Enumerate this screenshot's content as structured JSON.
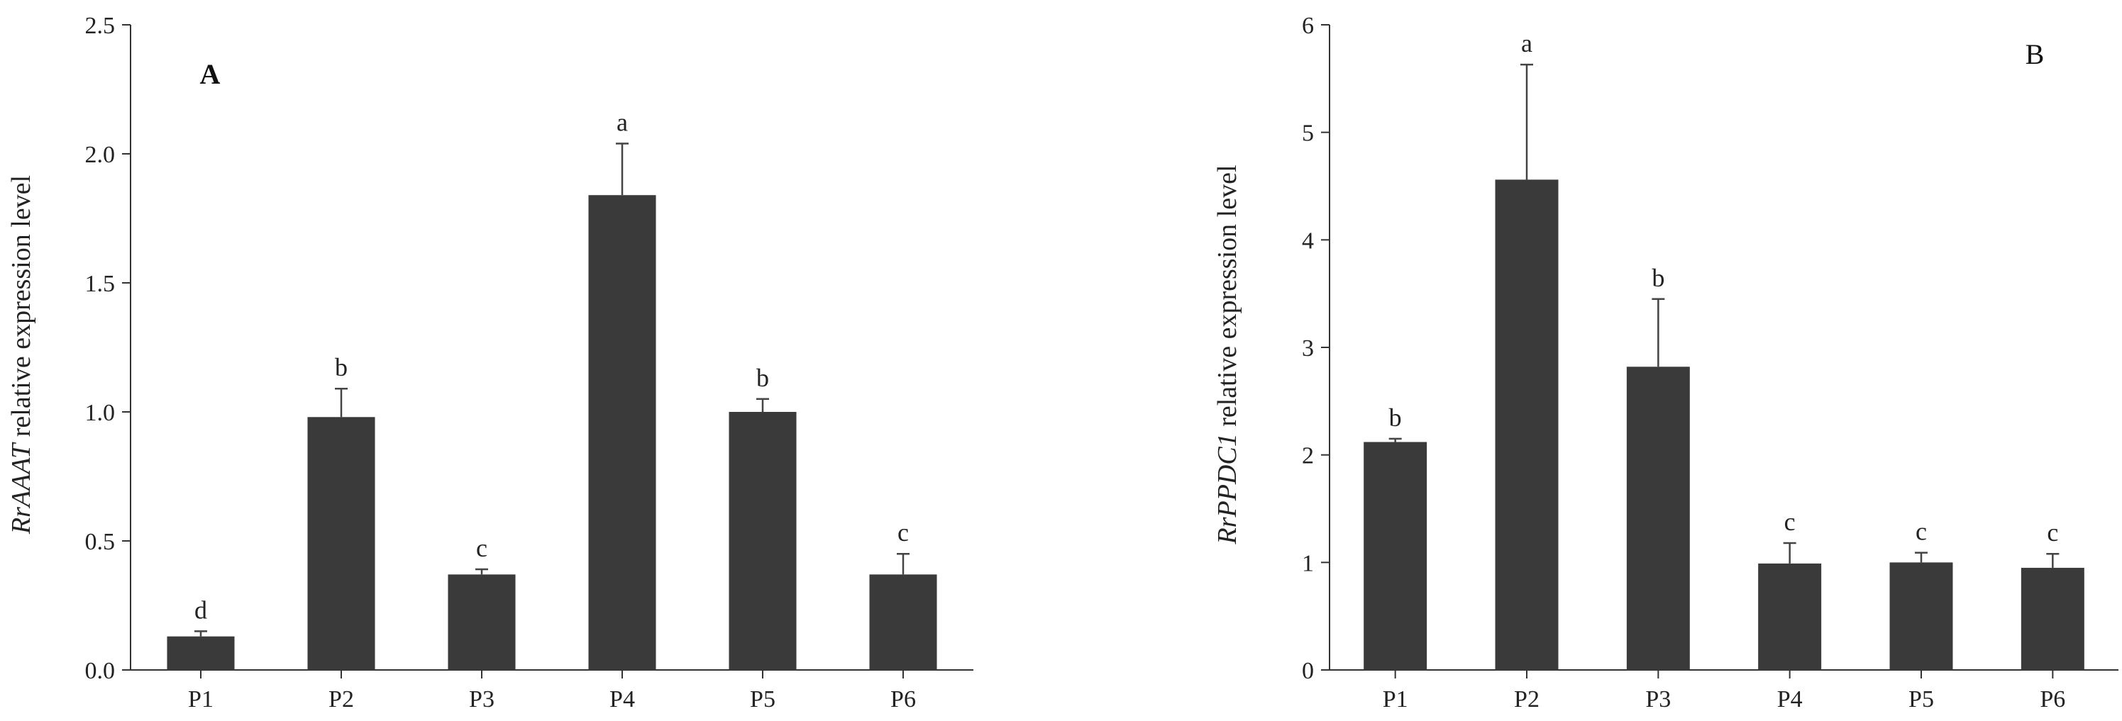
{
  "chart_data": [
    {
      "type": "bar",
      "panel_label": "A",
      "ylabel_italic": "RrAAAT",
      "ylabel_rest": " relative expression level",
      "categories": [
        "P1",
        "P2",
        "P3",
        "P4",
        "P5",
        "P6"
      ],
      "values": [
        0.13,
        0.98,
        0.37,
        1.84,
        1.0,
        0.37
      ],
      "errors": [
        0.02,
        0.11,
        0.02,
        0.2,
        0.05,
        0.08
      ],
      "significance": [
        "d",
        "b",
        "c",
        "a",
        "b",
        "c"
      ],
      "ylim": [
        0,
        2.5
      ],
      "yticks": [
        0,
        0.5,
        1.0,
        1.5,
        2.0,
        2.5
      ],
      "ytick_labels": [
        "0.0",
        "0.5",
        "1.0",
        "1.5",
        "2.0",
        "2.5"
      ],
      "grid": false,
      "bar_color": "#3a3a3a"
    },
    {
      "type": "bar",
      "panel_label": "B",
      "ylabel_italic": "RrPPDC1",
      "ylabel_rest": " relative expression level",
      "categories": [
        "P1",
        "P2",
        "P3",
        "P4",
        "P5",
        "P6"
      ],
      "values": [
        2.12,
        4.56,
        2.82,
        0.99,
        1.0,
        0.95
      ],
      "errors": [
        0.03,
        1.07,
        0.63,
        0.19,
        0.09,
        0.13
      ],
      "significance": [
        "b",
        "a",
        "b",
        "c",
        "c",
        "c"
      ],
      "ylim": [
        0,
        6
      ],
      "yticks": [
        0,
        1,
        2,
        3,
        4,
        5,
        6
      ],
      "ytick_labels": [
        "0",
        "1",
        "2",
        "3",
        "4",
        "5",
        "6"
      ],
      "grid": false,
      "bar_color": "#3a3a3a"
    }
  ]
}
